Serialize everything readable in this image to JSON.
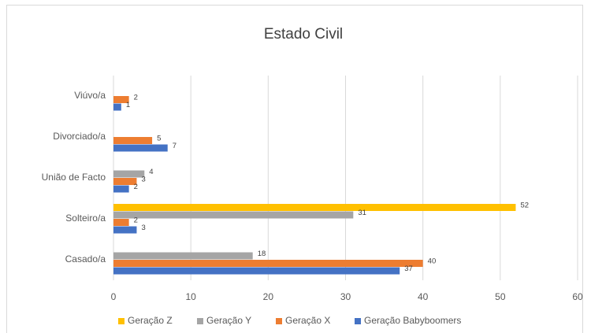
{
  "chart_data": {
    "type": "hbar",
    "title": "Estado Civil",
    "categories": [
      "Casado/a",
      "Solteiro/a",
      "União de Facto",
      "Divorciado/a",
      "Viúvo/a"
    ],
    "series": [
      {
        "name": "Geração Z",
        "color": "#FFC000",
        "values": [
          null,
          52,
          null,
          null,
          null
        ]
      },
      {
        "name": "Geração Y",
        "color": "#A5A5A5",
        "values": [
          18,
          31,
          4,
          null,
          null
        ]
      },
      {
        "name": "Geração X",
        "color": "#ED7D31",
        "values": [
          40,
          2,
          3,
          5,
          2
        ]
      },
      {
        "name": "Geração Babyboomers",
        "color": "#4472C4",
        "values": [
          37,
          3,
          2,
          7,
          1
        ]
      }
    ],
    "xlim": [
      0,
      60
    ],
    "xticks": [
      0,
      10,
      20,
      30,
      40,
      50,
      60
    ],
    "grid": true,
    "legend": "bottom"
  }
}
